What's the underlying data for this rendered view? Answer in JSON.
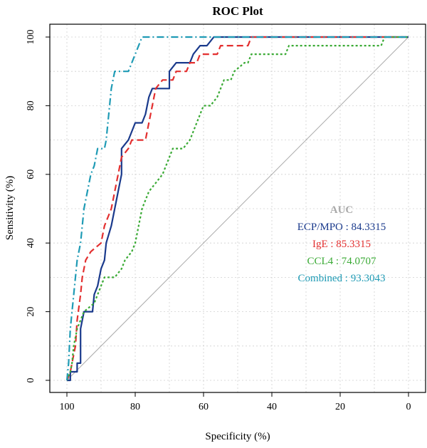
{
  "chart_data": {
    "type": "line",
    "title": "ROC Plot",
    "xlabel": "Specificity (%)",
    "ylabel": "Sensitivity (%)",
    "xlim": [
      100,
      0
    ],
    "ylim": [
      0,
      100
    ],
    "x_ticks": [
      100,
      80,
      60,
      40,
      20,
      0
    ],
    "y_ticks": [
      0,
      20,
      40,
      60,
      80,
      100
    ],
    "grid": true,
    "legend": {
      "title": "AUC",
      "title_color": "#aaaaaa",
      "position": "right",
      "entries": [
        {
          "label": "ECP/MPO : 84.3315",
          "color": "#1a3a8c"
        },
        {
          "label": "IgE : 85.3315",
          "color": "#e32f2f"
        },
        {
          "label": "CCL4 : 74.0707",
          "color": "#3aaa35"
        },
        {
          "label": "Combined : 93.3043",
          "color": "#1f9bb5"
        }
      ]
    },
    "reference_line": {
      "from": [
        100,
        0
      ],
      "to": [
        0,
        100
      ],
      "color": "#aaaaaa"
    },
    "series": [
      {
        "name": "ECP/MPO",
        "color": "#1a3a8c",
        "dash": "",
        "points": [
          [
            100,
            0
          ],
          [
            99,
            0
          ],
          [
            99,
            2.5
          ],
          [
            97,
            2.5
          ],
          [
            97,
            5
          ],
          [
            96,
            5
          ],
          [
            96,
            15
          ],
          [
            95.5,
            17.5
          ],
          [
            95,
            20
          ],
          [
            92.5,
            20
          ],
          [
            92,
            25
          ],
          [
            91,
            27.5
          ],
          [
            90,
            32.5
          ],
          [
            89,
            35
          ],
          [
            88.5,
            40
          ],
          [
            87,
            45
          ],
          [
            86,
            50
          ],
          [
            85,
            55
          ],
          [
            84,
            60
          ],
          [
            84,
            67.5
          ],
          [
            82,
            70
          ],
          [
            81,
            72.5
          ],
          [
            80,
            75
          ],
          [
            78,
            75
          ],
          [
            77,
            77.5
          ],
          [
            76.5,
            80
          ],
          [
            76,
            82.5
          ],
          [
            75,
            85
          ],
          [
            72,
            85
          ],
          [
            70,
            85
          ],
          [
            70,
            90
          ],
          [
            68,
            92.5
          ],
          [
            64,
            92.5
          ],
          [
            63,
            95
          ],
          [
            61,
            97.5
          ],
          [
            59,
            97.5
          ],
          [
            57,
            100
          ],
          [
            0,
            100
          ]
        ]
      },
      {
        "name": "IgE",
        "color": "#e32f2f",
        "dash": "9,5",
        "points": [
          [
            100,
            0
          ],
          [
            99,
            2.5
          ],
          [
            98.5,
            5
          ],
          [
            97.5,
            10
          ],
          [
            97,
            17.5
          ],
          [
            96,
            25
          ],
          [
            95.5,
            30
          ],
          [
            94.5,
            35
          ],
          [
            93,
            37.5
          ],
          [
            90,
            40
          ],
          [
            89,
            45
          ],
          [
            88,
            47.5
          ],
          [
            87,
            50
          ],
          [
            86,
            55
          ],
          [
            85,
            60
          ],
          [
            84,
            65
          ],
          [
            82,
            67.5
          ],
          [
            81,
            70
          ],
          [
            77,
            70
          ],
          [
            76,
            75
          ],
          [
            75,
            80
          ],
          [
            74,
            85
          ],
          [
            72,
            87.5
          ],
          [
            69,
            87.5
          ],
          [
            68,
            90
          ],
          [
            65,
            90
          ],
          [
            64,
            92.5
          ],
          [
            62,
            92.5
          ],
          [
            61,
            95
          ],
          [
            56,
            95
          ],
          [
            55,
            97.5
          ],
          [
            47,
            97.5
          ],
          [
            46,
            100
          ],
          [
            0,
            100
          ]
        ]
      },
      {
        "name": "CCL4",
        "color": "#3aaa35",
        "dash": "3,3",
        "points": [
          [
            100,
            0
          ],
          [
            99,
            2.5
          ],
          [
            98.5,
            5
          ],
          [
            98,
            10
          ],
          [
            97,
            15
          ],
          [
            96,
            17.5
          ],
          [
            95,
            20
          ],
          [
            92,
            22.5
          ],
          [
            91,
            25
          ],
          [
            90,
            27.5
          ],
          [
            89,
            30
          ],
          [
            86,
            30
          ],
          [
            84,
            32.5
          ],
          [
            83,
            35
          ],
          [
            81,
            37.5
          ],
          [
            80,
            40
          ],
          [
            79,
            45
          ],
          [
            78,
            50
          ],
          [
            76,
            55
          ],
          [
            74,
            57.5
          ],
          [
            72,
            60
          ],
          [
            71,
            62.5
          ],
          [
            70,
            65
          ],
          [
            69,
            67.5
          ],
          [
            66,
            67.5
          ],
          [
            64,
            70
          ],
          [
            63,
            72.5
          ],
          [
            62,
            75
          ],
          [
            61,
            77.5
          ],
          [
            60,
            80
          ],
          [
            58,
            80
          ],
          [
            56,
            82.5
          ],
          [
            55,
            85
          ],
          [
            54,
            87.5
          ],
          [
            52,
            87.5
          ],
          [
            51,
            90
          ],
          [
            48,
            92.5
          ],
          [
            47,
            92.5
          ],
          [
            46,
            95
          ],
          [
            36,
            95
          ],
          [
            35,
            97.5
          ],
          [
            8,
            97.5
          ],
          [
            7,
            100
          ],
          [
            0,
            100
          ]
        ]
      },
      {
        "name": "Combined",
        "color": "#1f9bb5",
        "dash": "10,4,2,4",
        "points": [
          [
            100,
            0
          ],
          [
            99.5,
            5
          ],
          [
            99,
            15
          ],
          [
            98.5,
            20
          ],
          [
            98,
            25
          ],
          [
            97.5,
            30
          ],
          [
            97,
            35
          ],
          [
            96,
            40
          ],
          [
            95.5,
            45
          ],
          [
            95,
            50
          ],
          [
            94,
            55
          ],
          [
            93,
            60
          ],
          [
            92,
            62.5
          ],
          [
            91.5,
            65
          ],
          [
            91,
            67.5
          ],
          [
            89,
            67.5
          ],
          [
            88.5,
            70
          ],
          [
            88,
            75
          ],
          [
            87.5,
            80
          ],
          [
            87,
            85
          ],
          [
            86,
            90
          ],
          [
            82,
            90
          ],
          [
            81,
            92.5
          ],
          [
            80,
            95
          ],
          [
            79,
            97.5
          ],
          [
            78,
            100
          ],
          [
            0,
            100
          ]
        ]
      }
    ]
  }
}
